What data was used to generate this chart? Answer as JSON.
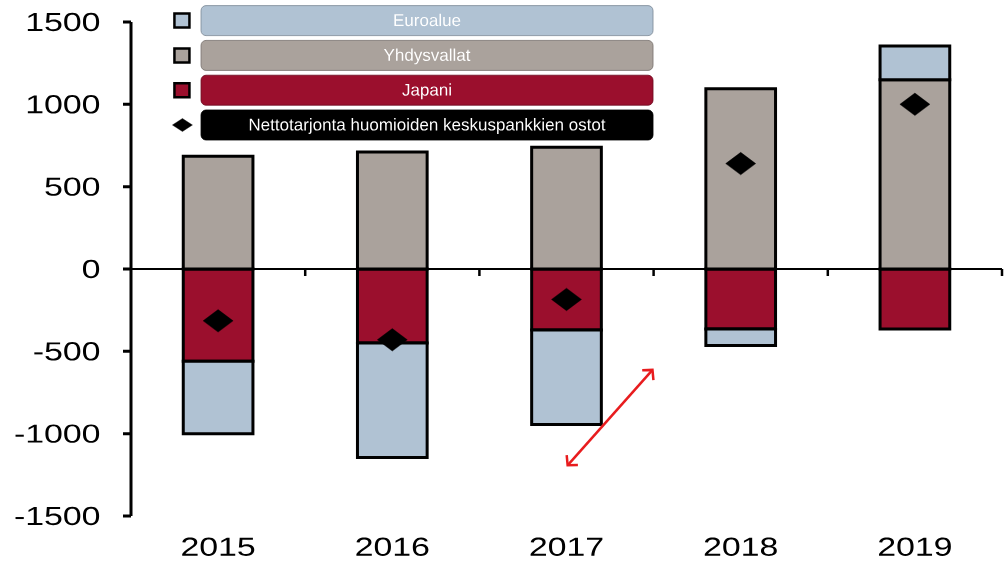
{
  "chart_data": {
    "type": "bar",
    "stacked": true,
    "categories": [
      "2015",
      "2016",
      "2017",
      "2018",
      "2019"
    ],
    "series": [
      {
        "name": "Japani",
        "color": "#9b0f2d",
        "values": [
          -560,
          -450,
          -370,
          -365,
          -365
        ]
      },
      {
        "name": "Yhdysvallat",
        "color": "#aaa29c",
        "values": [
          685,
          710,
          740,
          1095,
          1150
        ]
      },
      {
        "name": "Euroalue",
        "color": "#b0c2d3",
        "values": [
          -440,
          -695,
          -575,
          -100,
          205
        ]
      },
      {
        "name": "Nettotarjonta huomioiden keskuspankkien ostot",
        "type": "scatter",
        "marker": "diamond",
        "color": "#000000",
        "values": [
          -315,
          -430,
          -185,
          640,
          1000
        ]
      }
    ],
    "ylim": [
      -1500,
      1500
    ],
    "yticks": [
      -1500,
      -1000,
      -500,
      0,
      500,
      1000,
      1500
    ],
    "legend": "top left"
  }
}
